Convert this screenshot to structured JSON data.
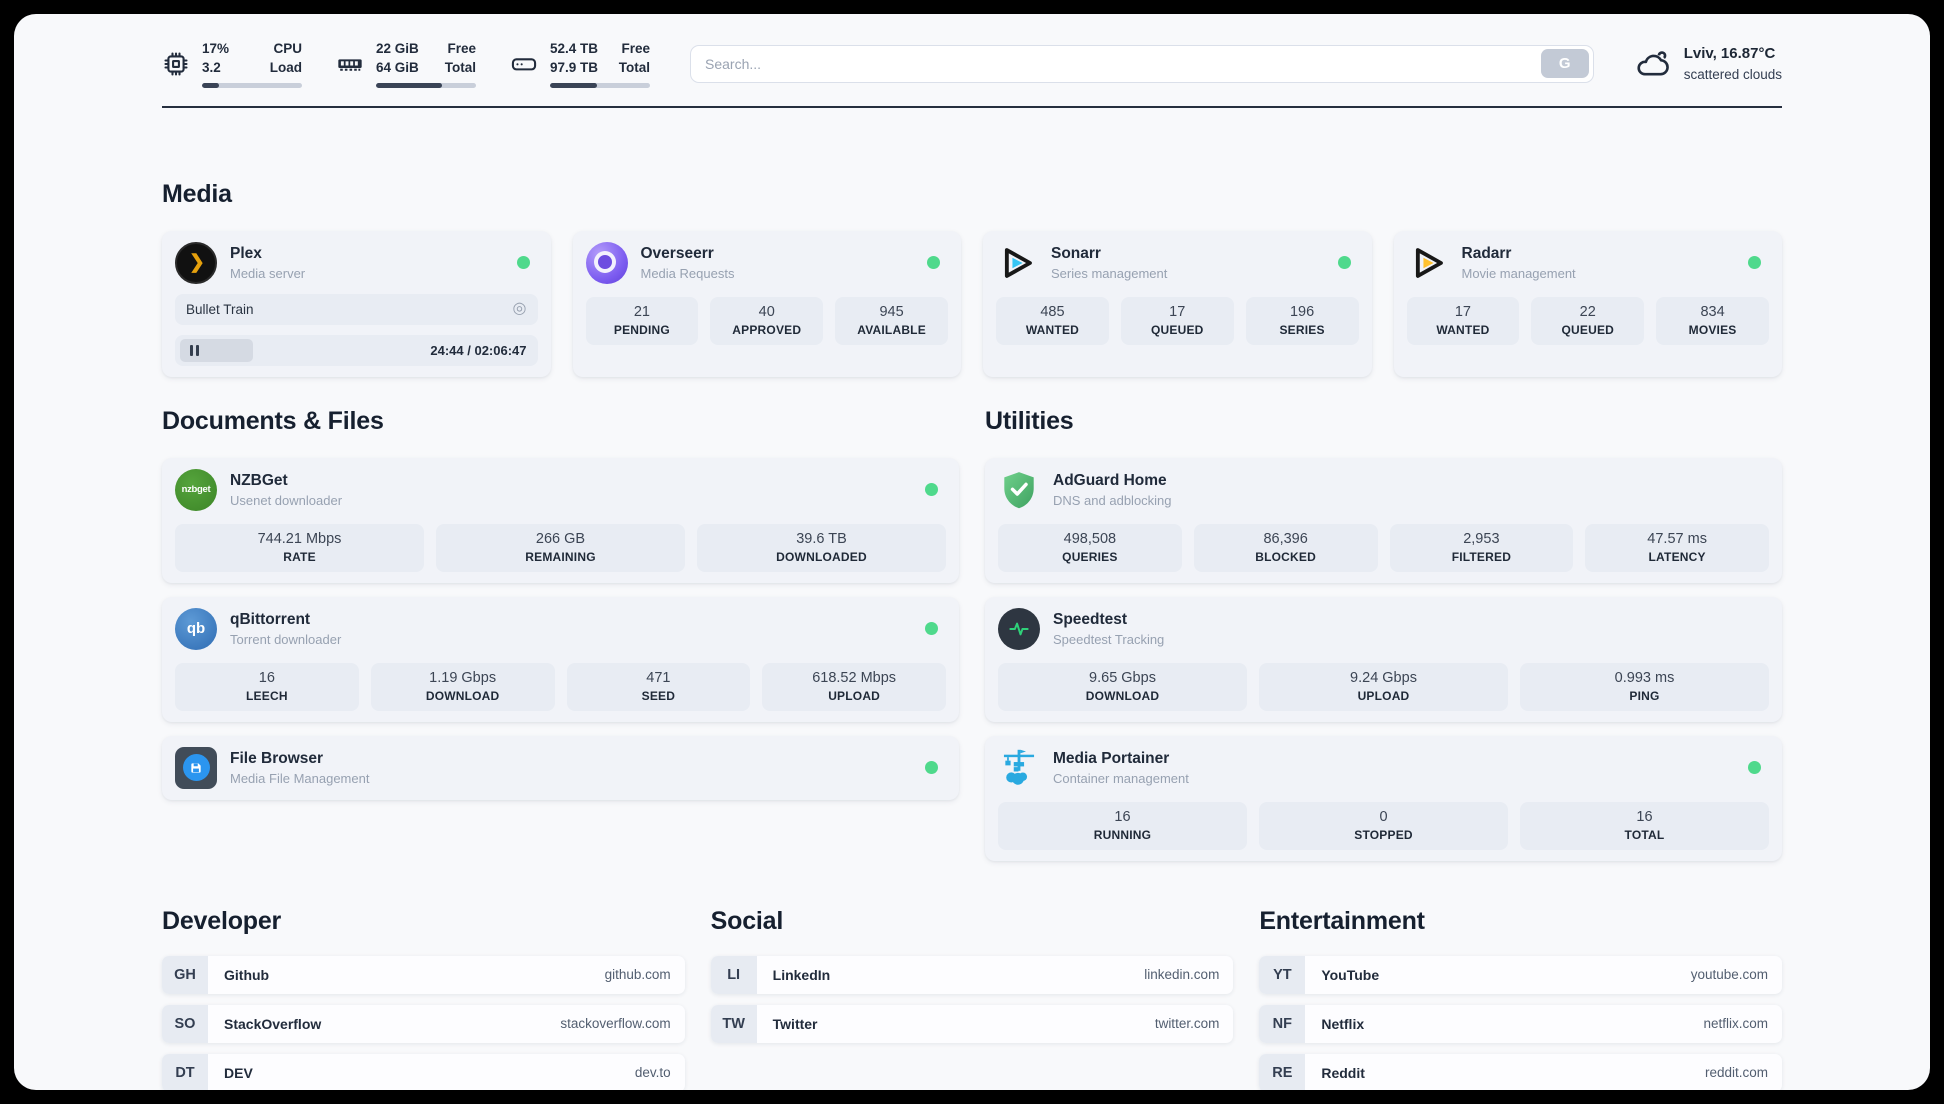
{
  "header": {
    "stats": [
      {
        "icon": "cpu-icon",
        "value_top": "17%",
        "value_bottom": "3.2",
        "label_top": "CPU",
        "label_bottom": "Load",
        "progress": 17
      },
      {
        "icon": "ram-icon",
        "value_top": "22 GiB",
        "value_bottom": "64 GiB",
        "label_top": "Free",
        "label_bottom": "Total",
        "progress": 66
      },
      {
        "icon": "disk-icon",
        "value_top": "52.4 TB",
        "value_bottom": "97.9 TB",
        "label_top": "Free",
        "label_bottom": "Total",
        "progress": 47
      }
    ],
    "search": {
      "placeholder": "Search...",
      "engine_button": "G"
    },
    "weather": {
      "location_temperature": "Lviv, 16.87°C",
      "condition": "scattered clouds"
    }
  },
  "sections": {
    "media": "Media",
    "documents": "Documents & Files",
    "utilities": "Utilities",
    "developer": "Developer",
    "social": "Social",
    "entertainment": "Entertainment"
  },
  "apps": {
    "plex": {
      "name": "Plex",
      "desc": "Media server",
      "status_dot": true,
      "now_playing": "Bullet Train",
      "time": "24:44 / 02:06:47"
    },
    "overseerr": {
      "name": "Overseerr",
      "desc": "Media Requests",
      "status_dot": true,
      "stats": [
        {
          "value": "21",
          "label": "PENDING"
        },
        {
          "value": "40",
          "label": "APPROVED"
        },
        {
          "value": "945",
          "label": "AVAILABLE"
        }
      ]
    },
    "sonarr": {
      "name": "Sonarr",
      "desc": "Series management",
      "status_dot": true,
      "stats": [
        {
          "value": "485",
          "label": "WANTED"
        },
        {
          "value": "17",
          "label": "QUEUED"
        },
        {
          "value": "196",
          "label": "SERIES"
        }
      ]
    },
    "radarr": {
      "name": "Radarr",
      "desc": "Movie management",
      "status_dot": true,
      "stats": [
        {
          "value": "17",
          "label": "WANTED"
        },
        {
          "value": "22",
          "label": "QUEUED"
        },
        {
          "value": "834",
          "label": "MOVIES"
        }
      ]
    },
    "nzbget": {
      "name": "NZBGet",
      "desc": "Usenet downloader",
      "status_dot": true,
      "stats": [
        {
          "value": "744.21 Mbps",
          "label": "RATE"
        },
        {
          "value": "266 GB",
          "label": "REMAINING"
        },
        {
          "value": "39.6 TB",
          "label": "DOWNLOADED"
        }
      ]
    },
    "qbittorrent": {
      "name": "qBittorrent",
      "desc": "Torrent downloader",
      "status_dot": true,
      "stats": [
        {
          "value": "16",
          "label": "LEECH"
        },
        {
          "value": "1.19 Gbps",
          "label": "DOWNLOAD"
        },
        {
          "value": "471",
          "label": "SEED"
        },
        {
          "value": "618.52 Mbps",
          "label": "UPLOAD"
        }
      ]
    },
    "filebrowser": {
      "name": "File Browser",
      "desc": "Media File Management",
      "status_dot": true
    },
    "adguard": {
      "name": "AdGuard Home",
      "desc": "DNS and adblocking",
      "status_dot": false,
      "stats": [
        {
          "value": "498,508",
          "label": "QUERIES"
        },
        {
          "value": "86,396",
          "label": "BLOCKED"
        },
        {
          "value": "2,953",
          "label": "FILTERED"
        },
        {
          "value": "47.57 ms",
          "label": "LATENCY"
        }
      ]
    },
    "speedtest": {
      "name": "Speedtest",
      "desc": "Speedtest Tracking",
      "status_dot": false,
      "stats": [
        {
          "value": "9.65 Gbps",
          "label": "DOWNLOAD"
        },
        {
          "value": "9.24 Gbps",
          "label": "UPLOAD"
        },
        {
          "value": "0.993 ms",
          "label": "PING"
        }
      ]
    },
    "portainer": {
      "name": "Media Portainer",
      "desc": "Container management",
      "status_dot": true,
      "stats": [
        {
          "value": "16",
          "label": "RUNNING"
        },
        {
          "value": "0",
          "label": "STOPPED"
        },
        {
          "value": "16",
          "label": "TOTAL"
        }
      ]
    }
  },
  "links": {
    "developer": [
      {
        "abbr": "GH",
        "name": "Github",
        "url": "github.com"
      },
      {
        "abbr": "SO",
        "name": "StackOverflow",
        "url": "stackoverflow.com"
      },
      {
        "abbr": "DT",
        "name": "DEV",
        "url": "dev.to"
      }
    ],
    "social": [
      {
        "abbr": "LI",
        "name": "LinkedIn",
        "url": "linkedin.com"
      },
      {
        "abbr": "TW",
        "name": "Twitter",
        "url": "twitter.com"
      }
    ],
    "entertainment": [
      {
        "abbr": "YT",
        "name": "YouTube",
        "url": "youtube.com"
      },
      {
        "abbr": "NF",
        "name": "Netflix",
        "url": "netflix.com"
      },
      {
        "abbr": "RE",
        "name": "Reddit",
        "url": "reddit.com"
      }
    ]
  },
  "colors": {
    "status_online": "#4fd98c",
    "plex_brand": "#e5a00d",
    "sonarr_brand": "#35c5f4",
    "radarr_brand": "#ffc230",
    "overseerr_brand": "#7c5cf0",
    "nzbget_brand": "#3c8527",
    "qbittorrent_brand": "#2f6cb3",
    "adguard_brand": "#57c878",
    "speedtest_pulse": "#2fd179",
    "portainer_brand": "#29a9e0",
    "text_navy": "#222c3c"
  }
}
